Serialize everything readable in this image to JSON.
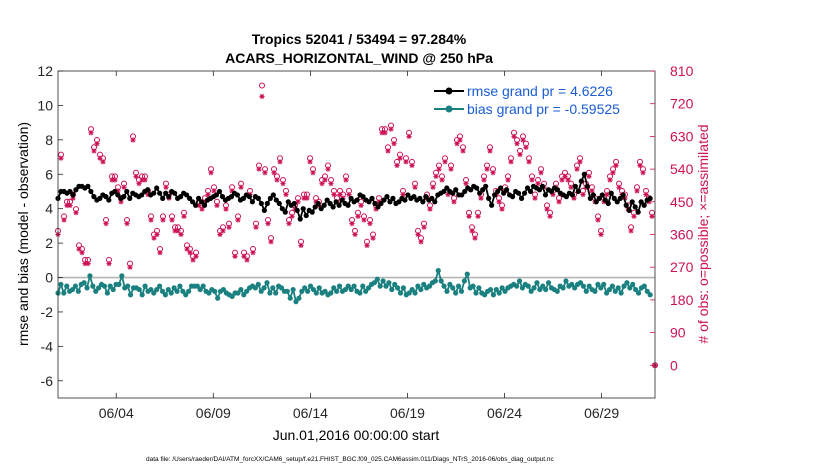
{
  "chart_data": {
    "type": "line",
    "title": "Tropics 52041 / 53494 = 97.284%",
    "subtitle": "ACARS_HORIZONTAL_WIND @ 250 hPa",
    "xlabel": "Jun.01,2016 00:00:00 start",
    "ylabel_left": "rmse and bias (model - observation)",
    "ylabel_right": "# of obs: o=possible; ×=assimilated",
    "xlim": [
      1,
      31.75
    ],
    "ylim_left": [
      -7,
      12
    ],
    "ylim_right": [
      -90,
      810
    ],
    "x_ticks": [
      4,
      9,
      14,
      19,
      24,
      29
    ],
    "x_tick_labels": [
      "06/04",
      "06/09",
      "06/14",
      "06/19",
      "06/24",
      "06/29"
    ],
    "y_ticks_left": [
      -6,
      -4,
      -2,
      0,
      2,
      4,
      6,
      8,
      10,
      12
    ],
    "y_tick_labels_left": [
      "-6",
      "-4",
      "-2",
      "0",
      "2",
      "4",
      "6",
      "8",
      "10",
      "12"
    ],
    "y_ticks_right": [
      0,
      90,
      180,
      270,
      360,
      450,
      540,
      630,
      720,
      810
    ],
    "y_tick_labels_right": [
      "0",
      "90",
      "180",
      "270",
      "360",
      "450",
      "540",
      "630",
      "720",
      "810"
    ],
    "legend_position": "top-right",
    "colors": {
      "rmse": "#000000",
      "bias": "#1b8080",
      "obs": "#cc1155",
      "zero_line": "#b5b5b5",
      "legend_text": "#1a5cd6"
    },
    "series": [
      {
        "name": "rmse grand pr = 4.6226",
        "axis": "left",
        "values": [
          4.6,
          5.0,
          5.0,
          4.9,
          5.0,
          4.8,
          5.1,
          5.3,
          5.3,
          5.2,
          5.3,
          5.0,
          4.7,
          4.5,
          4.6,
          4.8,
          4.7,
          4.5,
          4.9,
          5.0,
          4.8,
          4.6,
          4.7,
          5.0,
          4.6,
          4.9,
          4.8,
          4.7,
          4.8,
          5.0,
          5.1,
          4.8,
          4.9,
          5.2,
          4.9,
          4.6,
          4.9,
          4.7,
          5.0,
          4.9,
          4.6,
          4.7,
          4.9,
          4.8,
          4.6,
          4.4,
          4.2,
          4.6,
          4.4,
          4.2,
          4.5,
          4.6,
          4.7,
          4.8,
          5.0,
          4.7,
          4.5,
          4.6,
          4.7,
          4.9,
          4.8,
          4.5,
          4.6,
          4.8,
          4.7,
          4.4,
          4.7,
          4.6,
          4.3,
          3.9,
          4.3,
          4.6,
          4.8,
          4.5,
          4.3,
          4.0,
          3.8,
          4.4,
          4.2,
          4.3,
          3.9,
          3.4,
          4.0,
          3.6,
          3.9,
          3.8,
          4.1,
          4.3,
          4.0,
          4.2,
          4.5,
          4.3,
          4.1,
          4.4,
          4.2,
          4.5,
          4.3,
          4.2,
          4.6,
          4.4,
          4.5,
          4.8,
          4.7,
          4.5,
          4.4,
          4.6,
          4.3,
          4.1,
          4.3,
          4.5,
          4.7,
          4.4,
          4.6,
          4.3,
          4.4,
          4.6,
          4.5,
          4.8,
          4.6,
          4.7,
          4.5,
          4.6,
          4.4,
          4.7,
          4.5,
          4.6,
          4.4,
          4.8,
          4.9,
          5.0,
          5.2,
          5.0,
          4.9,
          5.1,
          4.8,
          4.8,
          5.0,
          5.2,
          5.1,
          5.3,
          5.2,
          4.9,
          5.1,
          5.3,
          4.6,
          4.2,
          4.8,
          5.0,
          5.2,
          4.9,
          5.1,
          4.8,
          4.7,
          5.0,
          4.9,
          4.6,
          4.9,
          5.2,
          5.0,
          5.3,
          5.2,
          5.1,
          5.3,
          4.8,
          5.1,
          5.0,
          5.2,
          5.1,
          4.9,
          4.8,
          4.7,
          4.9,
          4.8,
          5.3,
          5.0,
          5.6,
          6.0,
          5.3,
          4.6,
          4.8,
          4.4,
          4.6,
          4.8,
          4.5,
          4.3,
          4.9,
          4.6,
          4.4,
          4.6,
          4.8,
          4.2,
          3.9,
          4.4,
          4.1,
          3.8,
          4.4,
          4.2,
          4.5,
          4.6
        ]
      },
      {
        "name": "bias grand pr = -0.59525",
        "axis": "left",
        "values": [
          -0.9,
          -0.4,
          -0.9,
          -0.5,
          -0.8,
          -0.7,
          -0.5,
          -0.8,
          -0.4,
          -0.3,
          -0.6,
          0.1,
          -0.5,
          -0.8,
          -0.6,
          -0.4,
          -0.5,
          -0.9,
          -0.5,
          -0.7,
          -0.4,
          -0.4,
          0.1,
          -0.6,
          -0.5,
          -1.0,
          -0.6,
          -0.6,
          -0.7,
          -1.0,
          -0.5,
          -0.8,
          -0.7,
          -0.9,
          -0.7,
          -0.5,
          -0.8,
          -1.0,
          -0.7,
          -0.9,
          -0.6,
          -0.8,
          -0.5,
          -0.8,
          -1.0,
          -0.8,
          -0.5,
          -0.5,
          -0.5,
          -0.7,
          -0.5,
          -0.8,
          -0.9,
          -0.7,
          -0.8,
          -1.2,
          -0.8,
          -0.7,
          -0.9,
          -1.0,
          -1.1,
          -0.9,
          -0.9,
          -0.7,
          -1.0,
          -0.8,
          -0.6,
          -0.5,
          -0.6,
          -0.4,
          -0.8,
          -0.6,
          -0.3,
          -0.9,
          -0.6,
          -0.9,
          -0.5,
          -0.6,
          -0.8,
          -0.8,
          -1.2,
          -0.7,
          -1.4,
          -1.2,
          -0.8,
          -0.6,
          -0.8,
          -0.5,
          -0.7,
          -0.9,
          -0.6,
          -0.9,
          -0.8,
          -1.0,
          -0.9,
          -0.6,
          -0.8,
          -0.5,
          -0.8,
          -0.7,
          -0.5,
          -0.7,
          -0.5,
          -0.8,
          -0.9,
          -0.5,
          -0.8,
          -0.6,
          -0.4,
          -0.3,
          -0.1,
          -0.5,
          -0.2,
          -0.5,
          -0.3,
          -0.7,
          -0.4,
          -0.6,
          -0.9,
          -0.6,
          -1.0,
          -0.9,
          -0.7,
          -0.9,
          -0.5,
          -0.7,
          -0.4,
          -0.6,
          -0.5,
          -0.3,
          -0.2,
          0.4,
          -0.2,
          -0.5,
          -0.8,
          -0.4,
          -0.6,
          -0.9,
          -0.5,
          -0.8,
          -0.2,
          0.2,
          -0.6,
          -0.5,
          -0.9,
          -0.6,
          -0.9,
          -1.0,
          -0.8,
          -0.7,
          -1.0,
          -0.7,
          -0.9,
          -0.6,
          -0.8,
          -0.6,
          -0.5,
          -0.4,
          -0.5,
          -0.2,
          -0.6,
          -0.4,
          -0.5,
          -0.8,
          -0.6,
          -0.3,
          -0.7,
          -0.5,
          -0.7,
          -0.3,
          -0.6,
          -0.7,
          -0.8,
          -0.5,
          -0.6,
          -0.2,
          -0.5,
          -0.4,
          -0.6,
          -0.4,
          -0.3,
          -0.5,
          -0.8,
          -0.5,
          -0.7,
          -0.8,
          -0.4,
          -0.6,
          -0.4,
          -0.9,
          -0.7,
          -0.5,
          -0.8,
          -0.6,
          -0.9,
          -0.5,
          -0.3,
          -0.6,
          -0.4,
          -0.7,
          -0.9,
          -0.6,
          -0.5,
          -0.8,
          -1.0
        ]
      },
      {
        "name": "possible",
        "axis": "right",
        "marker": "o",
        "values": [
          370,
          580,
          410,
          450,
          450,
          470,
          430,
          330,
          320,
          290,
          290,
          650,
          600,
          620,
          580,
          570,
          400,
          290,
          520,
          520,
          490,
          460,
          500,
          400,
          280,
          630,
          530,
          510,
          520,
          520,
          480,
          410,
          360,
          370,
          320,
          410,
          500,
          470,
          410,
          380,
          380,
          370,
          420,
          330,
          320,
          300,
          310,
          450,
          440,
          460,
          480,
          540,
          490,
          450,
          370,
          380,
          440,
          390,
          490,
          310,
          410,
          500,
          310,
          300,
          480,
          320,
          390,
          550,
          770,
          540,
          400,
          350,
          540,
          520,
          570,
          510,
          480,
          400,
          420,
          440,
          460,
          340,
          470,
          470,
          570,
          540,
          460,
          450,
          510,
          520,
          550,
          510,
          480,
          460,
          480,
          470,
          520,
          480,
          400,
          370,
          420,
          450,
          410,
          340,
          400,
          360,
          440,
          460,
          650,
          650,
          600,
          660,
          620,
          560,
          580,
          480,
          570,
          640,
          560,
          500,
          370,
          350,
          390,
          470,
          440,
          500,
          530,
          550,
          520,
          570,
          480,
          550,
          460,
          620,
          630,
          600,
          510,
          420,
          380,
          360,
          420,
          470,
          520,
          550,
          600,
          540,
          480,
          460,
          440,
          490,
          520,
          570,
          640,
          620,
          590,
          630,
          610,
          570,
          520,
          470,
          510,
          540,
          500,
          440,
          420,
          480,
          500,
          460,
          520,
          530,
          520,
          500,
          470,
          550,
          570,
          480,
          500,
          530,
          490,
          460,
          410,
          370,
          460,
          480,
          520,
          540,
          560,
          500,
          480,
          470,
          440,
          380,
          420,
          490,
          560,
          540,
          480,
          460,
          420,
          0
        ]
      },
      {
        "name": "assimilated",
        "axis": "right",
        "marker": "x",
        "values": [
          360,
          570,
          400,
          440,
          440,
          460,
          420,
          320,
          310,
          280,
          280,
          640,
          590,
          610,
          570,
          560,
          390,
          280,
          510,
          510,
          480,
          450,
          490,
          390,
          270,
          620,
          520,
          500,
          510,
          510,
          470,
          400,
          350,
          360,
          310,
          400,
          490,
          460,
          400,
          370,
          370,
          360,
          410,
          320,
          310,
          290,
          300,
          440,
          430,
          450,
          470,
          530,
          480,
          440,
          360,
          370,
          430,
          380,
          480,
          300,
          400,
          490,
          300,
          290,
          470,
          310,
          380,
          540,
          740,
          530,
          390,
          340,
          530,
          510,
          560,
          500,
          470,
          390,
          410,
          430,
          450,
          330,
          460,
          460,
          560,
          530,
          450,
          440,
          500,
          510,
          540,
          500,
          470,
          450,
          470,
          460,
          510,
          470,
          390,
          360,
          410,
          440,
          400,
          330,
          390,
          350,
          430,
          450,
          640,
          640,
          590,
          650,
          610,
          550,
          570,
          470,
          560,
          630,
          550,
          490,
          360,
          340,
          380,
          460,
          430,
          490,
          520,
          540,
          510,
          560,
          470,
          540,
          450,
          610,
          620,
          590,
          500,
          410,
          370,
          350,
          410,
          460,
          510,
          540,
          590,
          530,
          470,
          450,
          430,
          480,
          510,
          560,
          630,
          610,
          580,
          620,
          600,
          560,
          510,
          460,
          500,
          530,
          490,
          430,
          410,
          470,
          490,
          450,
          510,
          520,
          510,
          490,
          460,
          540,
          560,
          470,
          490,
          520,
          480,
          450,
          400,
          360,
          450,
          470,
          510,
          530,
          550,
          490,
          470,
          460,
          430,
          370,
          410,
          480,
          550,
          530,
          470,
          450,
          410,
          0
        ]
      }
    ],
    "footer": "data file: /Users/raeder/DAI/ATM_forcXX/CAM6_setup/f.e21.FHIST_BGC.f09_025.CAM6assim.011/Diags_NTrS_2016-06/obs_diag_output.nc"
  }
}
